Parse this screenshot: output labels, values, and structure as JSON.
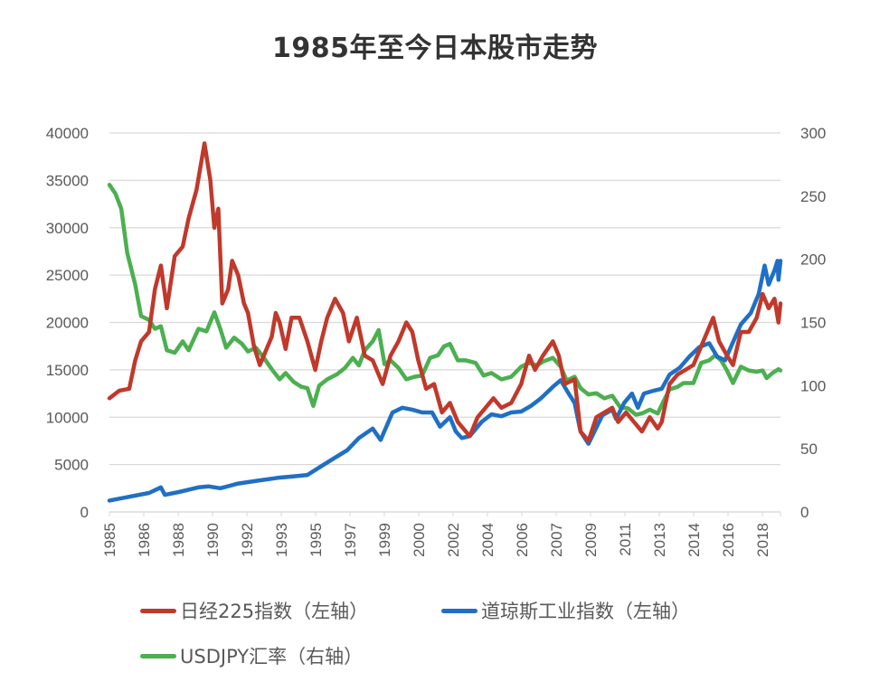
{
  "title": "1985年至今日本股市走势",
  "legend": [
    {
      "label": "日经225指数（左轴）",
      "color": "#C0392B"
    },
    {
      "label": "道琼斯工业指数（左轴）",
      "color": "#1F6FC5"
    },
    {
      "label": "USDJPY汇率（右轴）",
      "color": "#4CAF50"
    }
  ],
  "chart_data": {
    "type": "line",
    "title": "1985年至今日本股市走势",
    "xlabel": "",
    "ylabel_left": "",
    "ylabel_right": "",
    "x_tick_labels": [
      "1985",
      "1986",
      "1988",
      "1990",
      "1992",
      "1993",
      "1995",
      "1997",
      "1999",
      "2000",
      "2002",
      "2004",
      "2006",
      "2007",
      "2009",
      "2011",
      "2013",
      "2014",
      "2016",
      "2018"
    ],
    "y_left_ticks": [
      0,
      5000,
      10000,
      15000,
      20000,
      25000,
      30000,
      35000,
      40000
    ],
    "y_right_ticks": [
      0,
      50,
      100,
      150,
      200,
      250,
      300
    ],
    "ylim_left": [
      0,
      40000
    ],
    "ylim_right": [
      0,
      300
    ],
    "xlim": [
      1985.0,
      2018.9
    ],
    "grid": true,
    "legend_position": "bottom",
    "series": [
      {
        "name": "日经225指数（左轴）",
        "axis": "left",
        "color": "#C0392B",
        "x": [
          1985.0,
          1985.5,
          1986.0,
          1986.3,
          1986.6,
          1987.0,
          1987.3,
          1987.6,
          1987.9,
          1988.3,
          1988.7,
          1989.0,
          1989.4,
          1989.8,
          1990.1,
          1990.3,
          1990.5,
          1990.7,
          1991.0,
          1991.2,
          1991.5,
          1991.8,
          1992.0,
          1992.3,
          1992.6,
          1992.9,
          1993.2,
          1993.4,
          1993.6,
          1993.9,
          1994.2,
          1994.6,
          1995.0,
          1995.4,
          1995.7,
          1996.0,
          1996.4,
          1996.8,
          1997.1,
          1997.5,
          1997.9,
          1998.3,
          1998.8,
          1999.2,
          1999.6,
          2000.0,
          2000.3,
          2000.6,
          2001.0,
          2001.4,
          2001.8,
          2002.2,
          2002.6,
          2003.2,
          2003.6,
          2004.0,
          2004.4,
          2004.8,
          2005.3,
          2005.8,
          2006.2,
          2006.5,
          2006.9,
          2007.4,
          2007.7,
          2008.0,
          2008.5,
          2008.8,
          2009.2,
          2009.6,
          2010.0,
          2010.4,
          2010.7,
          2011.1,
          2011.5,
          2011.9,
          2012.3,
          2012.7,
          2012.9,
          2013.3,
          2013.7,
          2014.1,
          2014.5,
          2014.9,
          2015.3,
          2015.5,
          2015.8,
          2016.2,
          2016.5,
          2016.9,
          2017.3,
          2017.7,
          2018.0,
          2018.3,
          2018.6,
          2018.8,
          2018.9
        ],
        "values": [
          12000,
          12800,
          13000,
          16000,
          18000,
          19000,
          23500,
          26000,
          21500,
          27000,
          28000,
          31000,
          34000,
          38900,
          35000,
          30000,
          32000,
          22000,
          23500,
          26500,
          25000,
          22000,
          21000,
          17500,
          15500,
          17000,
          18500,
          21000,
          20000,
          17200,
          20500,
          20500,
          18000,
          15000,
          18000,
          20500,
          22500,
          21000,
          18000,
          20500,
          16500,
          16000,
          13500,
          16500,
          18000,
          20000,
          19000,
          16000,
          13000,
          13500,
          10500,
          11500,
          9500,
          8000,
          10000,
          11000,
          12000,
          11000,
          11500,
          13500,
          16500,
          15000,
          16500,
          18000,
          16500,
          13500,
          14000,
          8500,
          7500,
          10000,
          10500,
          11000,
          9500,
          10500,
          9500,
          8500,
          10000,
          8800,
          9500,
          13500,
          14500,
          15000,
          15500,
          17500,
          19500,
          20500,
          18000,
          16500,
          15500,
          19000,
          19000,
          20500,
          23000,
          21500,
          22500,
          20000,
          22000
        ]
      },
      {
        "name": "道琼斯工业指数（左轴）",
        "axis": "left",
        "color": "#1F6FC5",
        "x": [
          1985.0,
          1986.0,
          1987.0,
          1987.6,
          1987.8,
          1988.5,
          1989.5,
          1990.0,
          1990.6,
          1991.5,
          1992.5,
          1993.5,
          1994.5,
          1995.0,
          1995.6,
          1996.3,
          1997.0,
          1997.6,
          1998.3,
          1998.7,
          1999.3,
          1999.8,
          2000.3,
          2000.8,
          2001.3,
          2001.7,
          2002.2,
          2002.5,
          2002.8,
          2003.2,
          2003.8,
          2004.3,
          2004.8,
          2005.3,
          2005.8,
          2006.3,
          2006.8,
          2007.4,
          2007.8,
          2008.2,
          2008.5,
          2008.8,
          2009.2,
          2009.5,
          2009.9,
          2010.4,
          2010.6,
          2011.0,
          2011.4,
          2011.7,
          2012.0,
          2012.5,
          2012.9,
          2013.3,
          2013.8,
          2014.3,
          2014.8,
          2015.3,
          2015.7,
          2016.1,
          2016.6,
          2016.9,
          2017.4,
          2017.8,
          2018.1,
          2018.3,
          2018.6,
          2018.75,
          2018.8,
          2018.9
        ],
        "values": [
          1200,
          1600,
          2000,
          2600,
          1800,
          2100,
          2600,
          2700,
          2500,
          3000,
          3300,
          3600,
          3800,
          3900,
          4700,
          5600,
          6500,
          7800,
          8800,
          7600,
          10500,
          11000,
          10800,
          10500,
          10500,
          9000,
          10000,
          8500,
          7800,
          8000,
          9500,
          10300,
          10100,
          10500,
          10600,
          11200,
          12000,
          13200,
          13900,
          12500,
          11500,
          8500,
          7200,
          8500,
          10200,
          10800,
          9800,
          11500,
          12500,
          11000,
          12500,
          12800,
          13000,
          14500,
          15200,
          16400,
          17400,
          17800,
          16400,
          16000,
          18400,
          19800,
          21000,
          23000,
          26000,
          24000,
          25500,
          26500,
          24500,
          26500
        ]
      },
      {
        "name": "USDJPY汇率（右轴）",
        "axis": "right",
        "color": "#4CAF50",
        "x": [
          1985.0,
          1985.3,
          1985.6,
          1985.9,
          1986.3,
          1986.6,
          1987.0,
          1987.3,
          1987.6,
          1987.9,
          1988.3,
          1988.7,
          1989.0,
          1989.5,
          1989.9,
          1990.3,
          1990.6,
          1990.9,
          1991.3,
          1991.7,
          1992.0,
          1992.4,
          1992.8,
          1993.2,
          1993.6,
          1993.9,
          1994.3,
          1994.7,
          1995.0,
          1995.3,
          1995.6,
          1996.0,
          1996.5,
          1996.9,
          1997.3,
          1997.6,
          1997.9,
          1998.3,
          1998.6,
          1998.9,
          1999.2,
          1999.6,
          2000.0,
          2000.4,
          2000.8,
          2001.2,
          2001.6,
          2001.9,
          2002.2,
          2002.6,
          2003.0,
          2003.5,
          2003.9,
          2004.3,
          2004.8,
          2005.3,
          2005.8,
          2006.2,
          2006.6,
          2006.9,
          2007.4,
          2007.8,
          2008.1,
          2008.5,
          2008.8,
          2009.2,
          2009.6,
          2010.0,
          2010.4,
          2010.8,
          2011.2,
          2011.6,
          2011.9,
          2012.3,
          2012.7,
          2013.0,
          2013.3,
          2013.7,
          2014.0,
          2014.5,
          2014.9,
          2015.3,
          2015.6,
          2015.9,
          2016.2,
          2016.5,
          2016.9,
          2017.3,
          2017.7,
          2018.0,
          2018.2,
          2018.5,
          2018.8,
          2018.9
        ],
        "values": [
          259,
          252,
          240,
          205,
          180,
          155,
          152,
          145,
          147,
          128,
          126,
          135,
          128,
          145,
          143,
          158,
          145,
          130,
          138,
          133,
          127,
          130,
          122,
          113,
          105,
          110,
          103,
          99,
          98,
          84,
          100,
          105,
          109,
          114,
          122,
          116,
          128,
          135,
          144,
          117,
          120,
          114,
          105,
          107,
          108,
          122,
          124,
          131,
          133,
          120,
          120,
          118,
          108,
          110,
          105,
          107,
          115,
          118,
          116,
          119,
          122,
          115,
          104,
          107,
          98,
          93,
          94,
          90,
          92,
          83,
          82,
          77,
          78,
          81,
          78,
          88,
          97,
          99,
          102,
          102,
          118,
          120,
          124,
          120,
          112,
          102,
          115,
          112,
          111,
          112,
          106,
          110,
          113,
          112
        ]
      }
    ]
  }
}
